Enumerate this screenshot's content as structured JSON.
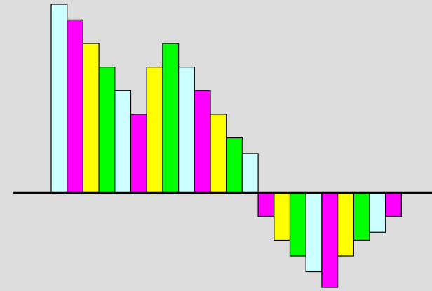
{
  "chart_data": {
    "type": "bar",
    "grid": false,
    "legend": "none",
    "ylim": [
      -12.0,
      24.0
    ],
    "values": [
      24,
      22,
      19,
      16,
      13,
      10,
      16,
      19,
      16,
      13,
      10,
      7,
      5,
      -3,
      -6,
      -8,
      -10,
      -12,
      -8,
      -6,
      -5,
      -3
    ],
    "palette": [
      "#ccffff",
      "#ff00ff",
      "#ffff00",
      "#00ff00"
    ]
  }
}
